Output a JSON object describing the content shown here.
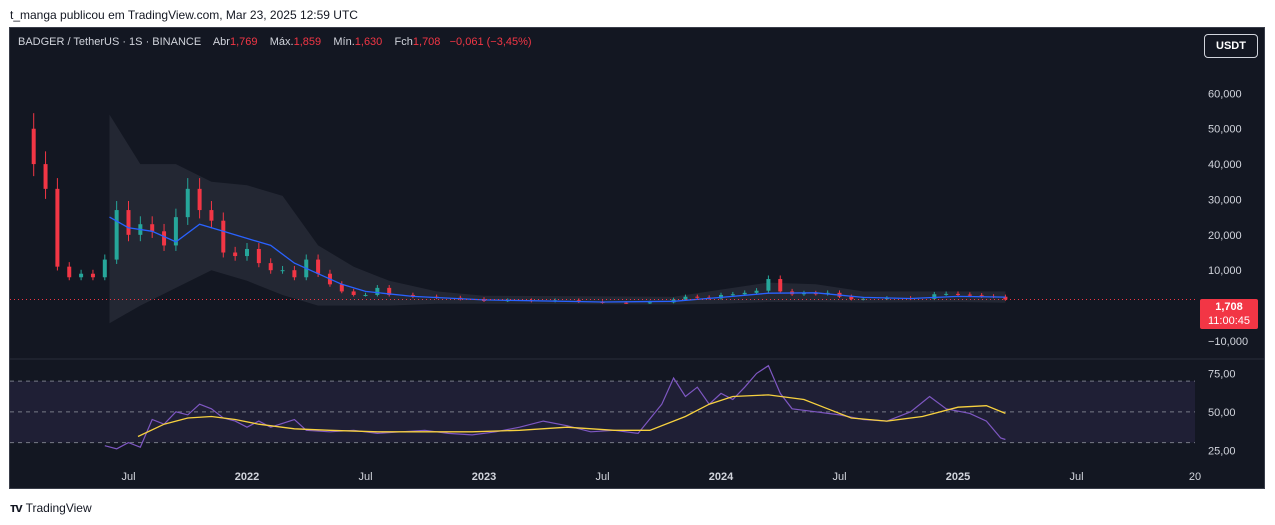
{
  "caption": "t_manga publicou em TradingView.com, Mar 23, 2025 12:59 UTC",
  "legend": {
    "symbol": "BADGER / TetherUS · 1S · BINANCE",
    "open_label": "Abr",
    "open": "1,769",
    "high_label": "Máx.",
    "high": "1,859",
    "low_label": "Mín.",
    "low": "1,630",
    "close_label": "Fch",
    "close": "1,708",
    "change": "−0,061 (−3,45%)"
  },
  "currency_button": "USDT",
  "last_price": "1,708",
  "countdown": "11:00:45",
  "brand": "TradingView",
  "colors": {
    "background": "#131722",
    "up": "#26a69a",
    "down": "#f23645",
    "ma": "#2962ff",
    "band": "#2a2e39",
    "rsi": "#7e57c2",
    "rsi_ma": "#f7d13f"
  },
  "chart_data": [
    {
      "type": "line",
      "title": "BADGER / TetherUS · 1S · BINANCE",
      "chart_kind": "candlestick",
      "y_ticks": [
        "60,000",
        "50,000",
        "40,000",
        "30,000",
        "20,000",
        "10,000",
        "−10,000"
      ],
      "y_tick_values": [
        60,
        50,
        40,
        30,
        20,
        10,
        -10
      ],
      "ylim": [
        -12,
        70
      ],
      "x_ticks": [
        "Jul",
        "2022",
        "Jul",
        "2023",
        "Jul",
        "2024",
        "Jul",
        "2025",
        "Jul",
        "20"
      ],
      "x_ticks_bold": [
        false,
        true,
        false,
        true,
        false,
        true,
        false,
        true,
        false,
        false
      ],
      "x_tick_values": [
        2021.5,
        2022.0,
        2022.5,
        2023.0,
        2023.5,
        2024.0,
        2024.5,
        2025.0,
        2025.5,
        2026.0
      ],
      "xlim": [
        2021.0,
        2026.0
      ],
      "close_series": [
        {
          "x": 2021.05,
          "y": 50
        },
        {
          "x": 2021.1,
          "y": 40
        },
        {
          "x": 2021.15,
          "y": 33
        },
        {
          "x": 2021.2,
          "y": 11
        },
        {
          "x": 2021.25,
          "y": 8
        },
        {
          "x": 2021.3,
          "y": 9
        },
        {
          "x": 2021.35,
          "y": 8
        },
        {
          "x": 2021.4,
          "y": 13
        },
        {
          "x": 2021.45,
          "y": 27
        },
        {
          "x": 2021.5,
          "y": 20
        },
        {
          "x": 2021.55,
          "y": 23
        },
        {
          "x": 2021.6,
          "y": 21
        },
        {
          "x": 2021.65,
          "y": 17
        },
        {
          "x": 2021.7,
          "y": 25
        },
        {
          "x": 2021.75,
          "y": 33
        },
        {
          "x": 2021.8,
          "y": 27
        },
        {
          "x": 2021.85,
          "y": 24
        },
        {
          "x": 2021.9,
          "y": 15
        },
        {
          "x": 2021.95,
          "y": 14
        },
        {
          "x": 2022.0,
          "y": 16
        },
        {
          "x": 2022.05,
          "y": 12
        },
        {
          "x": 2022.1,
          "y": 10
        },
        {
          "x": 2022.15,
          "y": 10
        },
        {
          "x": 2022.2,
          "y": 8
        },
        {
          "x": 2022.25,
          "y": 13
        },
        {
          "x": 2022.3,
          "y": 9
        },
        {
          "x": 2022.35,
          "y": 6
        },
        {
          "x": 2022.4,
          "y": 4
        },
        {
          "x": 2022.45,
          "y": 3
        },
        {
          "x": 2022.5,
          "y": 3
        },
        {
          "x": 2022.55,
          "y": 5
        },
        {
          "x": 2022.6,
          "y": 3
        },
        {
          "x": 2022.7,
          "y": 2.5
        },
        {
          "x": 2022.8,
          "y": 2.2
        },
        {
          "x": 2022.9,
          "y": 1.8
        },
        {
          "x": 2023.0,
          "y": 1.3
        },
        {
          "x": 2023.1,
          "y": 1.5
        },
        {
          "x": 2023.2,
          "y": 1.2
        },
        {
          "x": 2023.3,
          "y": 1.5
        },
        {
          "x": 2023.4,
          "y": 1.0
        },
        {
          "x": 2023.5,
          "y": 0.8
        },
        {
          "x": 2023.6,
          "y": 0.7
        },
        {
          "x": 2023.7,
          "y": 0.9
        },
        {
          "x": 2023.8,
          "y": 1.7
        },
        {
          "x": 2023.85,
          "y": 2.5
        },
        {
          "x": 2023.9,
          "y": 2.3
        },
        {
          "x": 2023.95,
          "y": 2.0
        },
        {
          "x": 2024.0,
          "y": 3.0
        },
        {
          "x": 2024.05,
          "y": 3.2
        },
        {
          "x": 2024.1,
          "y": 3.6
        },
        {
          "x": 2024.15,
          "y": 4.2
        },
        {
          "x": 2024.2,
          "y": 7.5
        },
        {
          "x": 2024.25,
          "y": 4.0
        },
        {
          "x": 2024.3,
          "y": 3.2
        },
        {
          "x": 2024.35,
          "y": 3.5
        },
        {
          "x": 2024.4,
          "y": 3.3
        },
        {
          "x": 2024.45,
          "y": 3.6
        },
        {
          "x": 2024.5,
          "y": 2.5
        },
        {
          "x": 2024.55,
          "y": 1.8
        },
        {
          "x": 2024.6,
          "y": 1.9
        },
        {
          "x": 2024.7,
          "y": 2.1
        },
        {
          "x": 2024.8,
          "y": 1.9
        },
        {
          "x": 2024.9,
          "y": 3.2
        },
        {
          "x": 2024.95,
          "y": 3.3
        },
        {
          "x": 2025.0,
          "y": 3.1
        },
        {
          "x": 2025.05,
          "y": 2.9
        },
        {
          "x": 2025.1,
          "y": 2.6
        },
        {
          "x": 2025.15,
          "y": 2.5
        },
        {
          "x": 2025.2,
          "y": 1.708
        }
      ],
      "moving_average": [
        {
          "x": 2021.42,
          "y": 25
        },
        {
          "x": 2021.5,
          "y": 22
        },
        {
          "x": 2021.6,
          "y": 21
        },
        {
          "x": 2021.7,
          "y": 18
        },
        {
          "x": 2021.8,
          "y": 23
        },
        {
          "x": 2021.9,
          "y": 21
        },
        {
          "x": 2022.0,
          "y": 19
        },
        {
          "x": 2022.1,
          "y": 17
        },
        {
          "x": 2022.2,
          "y": 12
        },
        {
          "x": 2022.3,
          "y": 9
        },
        {
          "x": 2022.4,
          "y": 6
        },
        {
          "x": 2022.5,
          "y": 4
        },
        {
          "x": 2022.7,
          "y": 2.6
        },
        {
          "x": 2023.0,
          "y": 1.6
        },
        {
          "x": 2023.5,
          "y": 1.0
        },
        {
          "x": 2023.8,
          "y": 1.2
        },
        {
          "x": 2024.0,
          "y": 2.3
        },
        {
          "x": 2024.2,
          "y": 3.5
        },
        {
          "x": 2024.4,
          "y": 3.6
        },
        {
          "x": 2024.6,
          "y": 2.3
        },
        {
          "x": 2024.8,
          "y": 2.0
        },
        {
          "x": 2025.0,
          "y": 2.6
        },
        {
          "x": 2025.2,
          "y": 2.4
        }
      ],
      "band_upper": [
        {
          "x": 2021.42,
          "y": 54
        },
        {
          "x": 2021.55,
          "y": 40
        },
        {
          "x": 2021.7,
          "y": 40
        },
        {
          "x": 2021.85,
          "y": 35
        },
        {
          "x": 2022.0,
          "y": 34
        },
        {
          "x": 2022.15,
          "y": 31
        },
        {
          "x": 2022.3,
          "y": 17
        },
        {
          "x": 2022.45,
          "y": 11
        },
        {
          "x": 2022.6,
          "y": 7
        },
        {
          "x": 2022.8,
          "y": 4
        },
        {
          "x": 2023.0,
          "y": 2.8
        },
        {
          "x": 2023.8,
          "y": 2.5
        },
        {
          "x": 2024.0,
          "y": 4.5
        },
        {
          "x": 2024.2,
          "y": 6.5
        },
        {
          "x": 2024.4,
          "y": 6.0
        },
        {
          "x": 2024.6,
          "y": 4.0
        },
        {
          "x": 2025.0,
          "y": 4.0
        },
        {
          "x": 2025.2,
          "y": 4.0
        }
      ],
      "band_lower": [
        {
          "x": 2021.42,
          "y": -5
        },
        {
          "x": 2021.55,
          "y": 0
        },
        {
          "x": 2021.7,
          "y": 5
        },
        {
          "x": 2021.85,
          "y": 10
        },
        {
          "x": 2022.0,
          "y": 7
        },
        {
          "x": 2022.15,
          "y": 3
        },
        {
          "x": 2022.3,
          "y": 0
        },
        {
          "x": 2022.45,
          "y": 0
        },
        {
          "x": 2022.6,
          "y": 0
        },
        {
          "x": 2022.8,
          "y": 0.5
        },
        {
          "x": 2023.0,
          "y": 0.5
        },
        {
          "x": 2023.8,
          "y": 0.3
        },
        {
          "x": 2024.0,
          "y": 0.5
        },
        {
          "x": 2024.2,
          "y": 1.0
        },
        {
          "x": 2024.4,
          "y": 1.0
        },
        {
          "x": 2024.6,
          "y": 0.8
        },
        {
          "x": 2025.0,
          "y": 1.0
        },
        {
          "x": 2025.2,
          "y": 0.8
        }
      ]
    },
    {
      "type": "line",
      "chart_kind": "rsi",
      "y_ticks": [
        "75,00",
        "50,00",
        "25,00"
      ],
      "y_tick_values": [
        75,
        50,
        25
      ],
      "ylim": [
        20,
        85
      ],
      "band": [
        30,
        70
      ],
      "rsi": [
        {
          "x": 2021.4,
          "y": 28
        },
        {
          "x": 2021.45,
          "y": 26
        },
        {
          "x": 2021.5,
          "y": 30
        },
        {
          "x": 2021.55,
          "y": 27
        },
        {
          "x": 2021.6,
          "y": 45
        },
        {
          "x": 2021.65,
          "y": 42
        },
        {
          "x": 2021.7,
          "y": 50
        },
        {
          "x": 2021.75,
          "y": 48
        },
        {
          "x": 2021.8,
          "y": 55
        },
        {
          "x": 2021.85,
          "y": 52
        },
        {
          "x": 2021.9,
          "y": 46
        },
        {
          "x": 2021.95,
          "y": 44
        },
        {
          "x": 2022.0,
          "y": 40
        },
        {
          "x": 2022.05,
          "y": 44
        },
        {
          "x": 2022.1,
          "y": 40
        },
        {
          "x": 2022.2,
          "y": 45
        },
        {
          "x": 2022.25,
          "y": 38
        },
        {
          "x": 2022.35,
          "y": 37
        },
        {
          "x": 2022.45,
          "y": 38
        },
        {
          "x": 2022.55,
          "y": 36
        },
        {
          "x": 2022.65,
          "y": 37
        },
        {
          "x": 2022.75,
          "y": 38
        },
        {
          "x": 2022.85,
          "y": 36
        },
        {
          "x": 2022.95,
          "y": 35
        },
        {
          "x": 2023.05,
          "y": 37
        },
        {
          "x": 2023.15,
          "y": 40
        },
        {
          "x": 2023.25,
          "y": 44
        },
        {
          "x": 2023.35,
          "y": 41
        },
        {
          "x": 2023.45,
          "y": 37
        },
        {
          "x": 2023.55,
          "y": 38
        },
        {
          "x": 2023.65,
          "y": 36
        },
        {
          "x": 2023.75,
          "y": 55
        },
        {
          "x": 2023.8,
          "y": 72
        },
        {
          "x": 2023.85,
          "y": 60
        },
        {
          "x": 2023.9,
          "y": 66
        },
        {
          "x": 2023.95,
          "y": 55
        },
        {
          "x": 2024.0,
          "y": 62
        },
        {
          "x": 2024.05,
          "y": 58
        },
        {
          "x": 2024.1,
          "y": 66
        },
        {
          "x": 2024.15,
          "y": 75
        },
        {
          "x": 2024.2,
          "y": 80
        },
        {
          "x": 2024.25,
          "y": 62
        },
        {
          "x": 2024.3,
          "y": 52
        },
        {
          "x": 2024.4,
          "y": 50
        },
        {
          "x": 2024.5,
          "y": 48
        },
        {
          "x": 2024.6,
          "y": 45
        },
        {
          "x": 2024.7,
          "y": 44
        },
        {
          "x": 2024.8,
          "y": 50
        },
        {
          "x": 2024.88,
          "y": 60
        },
        {
          "x": 2024.95,
          "y": 52
        },
        {
          "x": 2025.05,
          "y": 49
        },
        {
          "x": 2025.12,
          "y": 44
        },
        {
          "x": 2025.18,
          "y": 33
        },
        {
          "x": 2025.2,
          "y": 32
        }
      ],
      "rsi_ma": [
        {
          "x": 2021.54,
          "y": 34
        },
        {
          "x": 2021.65,
          "y": 42
        },
        {
          "x": 2021.75,
          "y": 46
        },
        {
          "x": 2021.85,
          "y": 47
        },
        {
          "x": 2021.95,
          "y": 45
        },
        {
          "x": 2022.05,
          "y": 42
        },
        {
          "x": 2022.2,
          "y": 39
        },
        {
          "x": 2022.35,
          "y": 38
        },
        {
          "x": 2022.55,
          "y": 37
        },
        {
          "x": 2022.75,
          "y": 37
        },
        {
          "x": 2022.95,
          "y": 37
        },
        {
          "x": 2023.15,
          "y": 38
        },
        {
          "x": 2023.35,
          "y": 40
        },
        {
          "x": 2023.55,
          "y": 38
        },
        {
          "x": 2023.7,
          "y": 38
        },
        {
          "x": 2023.85,
          "y": 47
        },
        {
          "x": 2023.95,
          "y": 55
        },
        {
          "x": 2024.05,
          "y": 60
        },
        {
          "x": 2024.2,
          "y": 61
        },
        {
          "x": 2024.35,
          "y": 58
        },
        {
          "x": 2024.45,
          "y": 52
        },
        {
          "x": 2024.55,
          "y": 46
        },
        {
          "x": 2024.7,
          "y": 44
        },
        {
          "x": 2024.85,
          "y": 47
        },
        {
          "x": 2025.0,
          "y": 53
        },
        {
          "x": 2025.12,
          "y": 54
        },
        {
          "x": 2025.2,
          "y": 49
        }
      ]
    }
  ]
}
